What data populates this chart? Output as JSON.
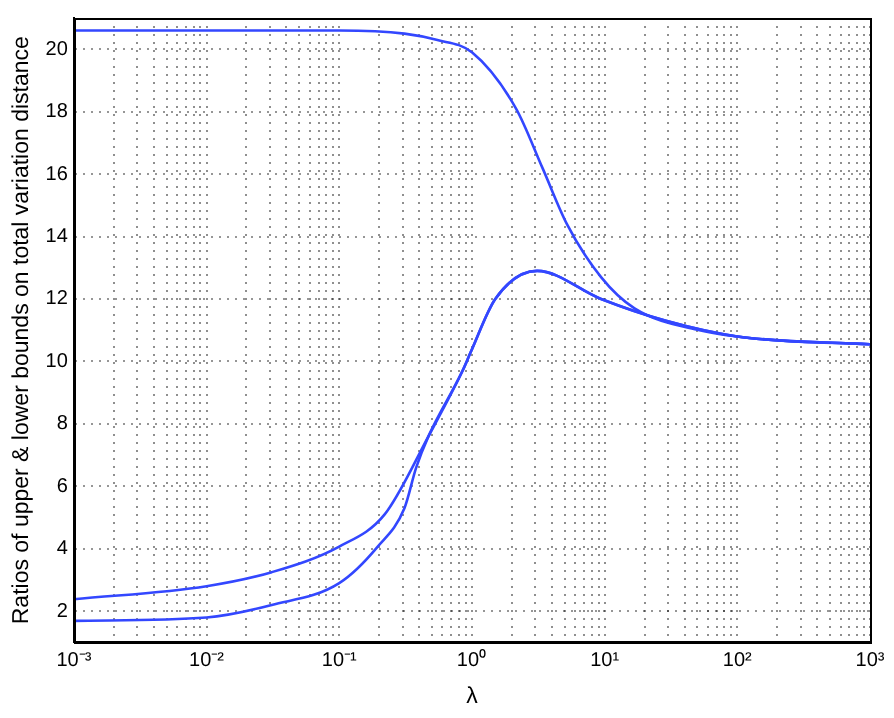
{
  "chart_data": {
    "type": "line",
    "xlabel": "λ",
    "ylabel": "Ratios of upper & lower bounds on total variation distance",
    "log": "x",
    "grid": true,
    "marker": "none",
    "line_style": "solid",
    "xlim": [
      0.001,
      1000
    ],
    "ylim": [
      1,
      21
    ],
    "xticks": [
      {
        "value": 0.001,
        "label": "10⁻³"
      },
      {
        "value": 0.002,
        "label": null
      },
      {
        "value": 0.003,
        "label": null
      },
      {
        "value": 0.004,
        "label": null
      },
      {
        "value": 0.005,
        "label": null
      },
      {
        "value": 0.006,
        "label": null
      },
      {
        "value": 0.007,
        "label": null
      },
      {
        "value": 0.008,
        "label": null
      },
      {
        "value": 0.009,
        "label": null
      },
      {
        "value": 0.01,
        "label": "10⁻²"
      },
      {
        "value": 0.02,
        "label": null
      },
      {
        "value": 0.03,
        "label": null
      },
      {
        "value": 0.04,
        "label": null
      },
      {
        "value": 0.05,
        "label": null
      },
      {
        "value": 0.06,
        "label": null
      },
      {
        "value": 0.07,
        "label": null
      },
      {
        "value": 0.08,
        "label": null
      },
      {
        "value": 0.09,
        "label": null
      },
      {
        "value": 0.1,
        "label": "10⁻¹"
      },
      {
        "value": 0.2,
        "label": null
      },
      {
        "value": 0.3,
        "label": null
      },
      {
        "value": 0.4,
        "label": null
      },
      {
        "value": 0.5,
        "label": null
      },
      {
        "value": 0.6,
        "label": null
      },
      {
        "value": 0.7,
        "label": null
      },
      {
        "value": 0.8,
        "label": null
      },
      {
        "value": 0.9,
        "label": null
      },
      {
        "value": 1,
        "label": "10⁰"
      },
      {
        "value": 2,
        "label": null
      },
      {
        "value": 3,
        "label": null
      },
      {
        "value": 4,
        "label": null
      },
      {
        "value": 5,
        "label": null
      },
      {
        "value": 6,
        "label": null
      },
      {
        "value": 7,
        "label": null
      },
      {
        "value": 8,
        "label": null
      },
      {
        "value": 9,
        "label": null
      },
      {
        "value": 10,
        "label": "10¹"
      },
      {
        "value": 20,
        "label": null
      },
      {
        "value": 30,
        "label": null
      },
      {
        "value": 40,
        "label": null
      },
      {
        "value": 50,
        "label": null
      },
      {
        "value": 60,
        "label": null
      },
      {
        "value": 70,
        "label": null
      },
      {
        "value": 80,
        "label": null
      },
      {
        "value": 90,
        "label": null
      },
      {
        "value": 100,
        "label": "10²"
      },
      {
        "value": 200,
        "label": null
      },
      {
        "value": 300,
        "label": null
      },
      {
        "value": 400,
        "label": null
      },
      {
        "value": 500,
        "label": null
      },
      {
        "value": 600,
        "label": null
      },
      {
        "value": 700,
        "label": null
      },
      {
        "value": 800,
        "label": null
      },
      {
        "value": 900,
        "label": null
      },
      {
        "value": 1000,
        "label": "10³"
      }
    ],
    "yticks": [
      2,
      4,
      6,
      8,
      10,
      12,
      14,
      16,
      18,
      20
    ],
    "series": [
      {
        "color": "#3347ff",
        "x": [
          0.001,
          0.01,
          0.1,
          0.31,
          0.54,
          1,
          2.15,
          3.4,
          5.2,
          9.4,
          16.8,
          52,
          162,
          1000
        ],
        "values": [
          20.6,
          20.6,
          20.6,
          20.5,
          20.3,
          19.9,
          18.1,
          16.2,
          14.4,
          12.7,
          11.7,
          11.0,
          10.7,
          10.55
        ]
      },
      {
        "color": "#3347ff",
        "x": [
          0.001,
          0.01,
          0.031,
          0.1,
          0.22,
          0.47,
          0.85,
          0.98,
          1.5,
          3.1,
          9.4,
          29,
          100,
          1000
        ],
        "values": [
          2.38,
          2.8,
          3.25,
          4.07,
          5.1,
          7.6,
          9.7,
          10.3,
          12.0,
          12.9,
          12.0,
          11.3,
          10.8,
          10.55
        ]
      },
      {
        "color": "#3347ff",
        "x": [
          0.001,
          0.01,
          0.031,
          0.1,
          0.195,
          0.31,
          0.38,
          0.47,
          0.85,
          0.98,
          1.5,
          3.1,
          9.4,
          29,
          100,
          1000
        ],
        "values": [
          1.69,
          1.8,
          2.2,
          2.9,
          4.07,
          5.3,
          6.6,
          7.6,
          9.7,
          10.3,
          12.0,
          12.9,
          12.0,
          11.3,
          10.8,
          10.55
        ]
      }
    ]
  }
}
